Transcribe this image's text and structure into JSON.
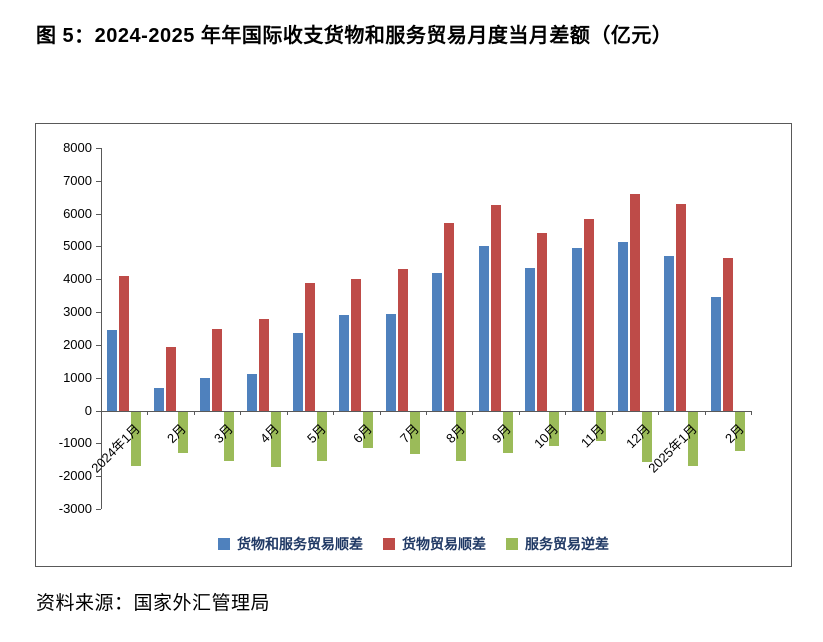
{
  "title": "图 5：2024-2025 年年国际收支货物和服务贸易月度当月差额（亿元）",
  "source": "资料来源：国家外汇管理局",
  "colors": {
    "axis": "#595959",
    "legend_text": "#1F3864"
  },
  "chart_data": {
    "type": "bar",
    "title": "2024-2025 年年国际收支货物和服务贸易月度当月差额（亿元）",
    "categories": [
      "2024年1月",
      "2月",
      "3月",
      "4月",
      "5月",
      "6月",
      "7月",
      "8月",
      "9月",
      "10月",
      "11月",
      "12月",
      "2025年1月",
      "2月"
    ],
    "series": [
      {
        "name": "货物和服务贸易顺差",
        "color": "#4F81BD",
        "values": [
          2450,
          700,
          1000,
          1100,
          2350,
          2900,
          2950,
          4200,
          5000,
          4350,
          4950,
          5150,
          4700,
          3450
        ]
      },
      {
        "name": "货物贸易顺差",
        "color": "#BE4B48",
        "values": [
          4100,
          1950,
          2500,
          2800,
          3900,
          4000,
          4300,
          5700,
          6250,
          5400,
          5850,
          6600,
          6300,
          4650
        ]
      },
      {
        "name": "服务贸易逆差",
        "color": "#9BBB59",
        "values": [
          -1650,
          -1250,
          -1500,
          -1700,
          -1500,
          -1100,
          -1300,
          -1500,
          -1250,
          -1050,
          -900,
          -1550,
          -1650,
          -1200
        ]
      }
    ],
    "xlabel": "",
    "ylabel": "",
    "ylim": [
      -3000,
      8000
    ],
    "yticks": [
      8000,
      7000,
      6000,
      5000,
      4000,
      3000,
      2000,
      1000,
      0,
      -1000,
      -2000,
      -3000
    ],
    "grid": false,
    "legend_position": "bottom"
  }
}
